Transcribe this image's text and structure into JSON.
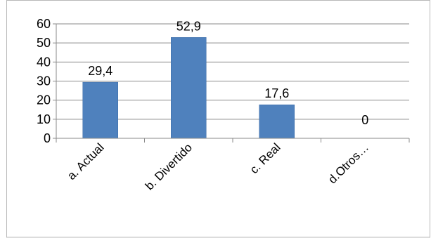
{
  "chart_data": {
    "type": "bar",
    "title": "",
    "xlabel": "",
    "ylabel": "",
    "categories": [
      "a. Actual",
      "b. Divertido",
      "c. Real",
      "d.Otros…"
    ],
    "values": [
      29.4,
      52.9,
      17.6,
      0
    ],
    "value_labels": [
      "29,4",
      "52,9",
      "17,6",
      "0"
    ],
    "y_ticks": [
      "0",
      "10",
      "20",
      "30",
      "40",
      "50",
      "60"
    ],
    "ylim": [
      0,
      60
    ],
    "grid": true,
    "legend": "none",
    "colors": {
      "bar": "#4F81BD",
      "bar_edge": "#3A6AA6",
      "grid": "#8A8A8A",
      "axis": "#8A8A8A",
      "frame": "#B8B8B8"
    }
  }
}
